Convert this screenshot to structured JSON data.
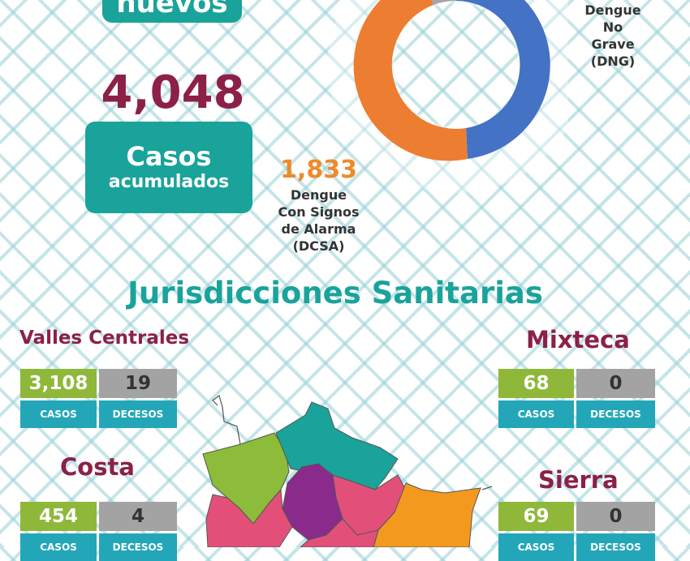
{
  "top": {
    "nuevos_label": "nuevos",
    "casos_total": "4,048",
    "casos_label_line1": "Casos",
    "casos_label_line2": "acumulados"
  },
  "donut": {
    "dng_label_line1": "Dengue",
    "dng_label_line2": "No",
    "dng_label_line3": "Grave",
    "dng_label_line4": "(DNG)",
    "dcsa_value": "1,833",
    "dcsa_label_line1": "Dengue",
    "dcsa_label_line2": "Con Signos",
    "dcsa_label_line3": "de Alarma",
    "dcsa_label_line4": "(DCSA)",
    "colors": {
      "dng": "#4472c4",
      "dcsa": "#ed7d31",
      "other": "#a5a5a5"
    }
  },
  "section_title": "Jurisdicciones Sanitarias",
  "jurisdicciones": {
    "valles": {
      "name": "Valles Centrales",
      "casos": "3,108",
      "decesos": "19",
      "casos_label": "CASOS",
      "decesos_label": "DECESOS"
    },
    "mixteca": {
      "name": "Mixteca",
      "casos": "68",
      "decesos": "0",
      "casos_label": "CASOS",
      "decesos_label": "DECESOS"
    },
    "costa": {
      "name": "Costa",
      "casos": "454",
      "decesos": "4",
      "casos_label": "CASOS",
      "decesos_label": "DECESOS"
    },
    "sierra": {
      "name": "Sierra",
      "casos": "69",
      "decesos": "0",
      "casos_label": "CASOS",
      "decesos_label": "DECESOS"
    }
  },
  "map": {
    "icon": "oaxaca-regions-map",
    "colors": {
      "green": "#8cbc3a",
      "teal": "#1aa39a",
      "pink": "#e2507a",
      "purple": "#8a2b8c",
      "orange": "#f39a1e"
    }
  }
}
